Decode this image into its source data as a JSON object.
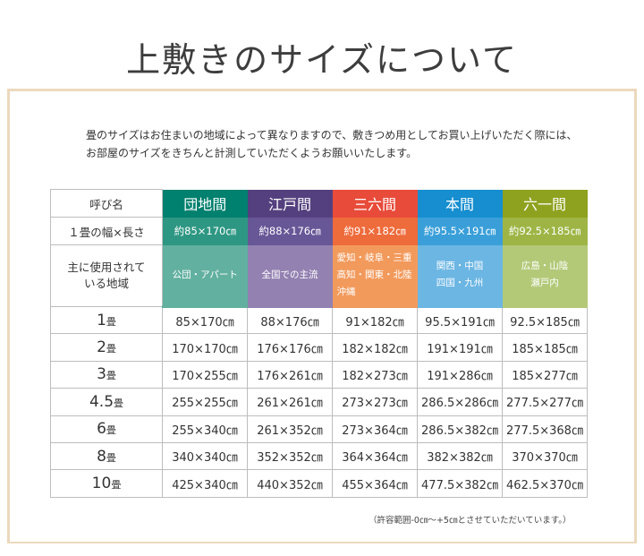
{
  "title": "上敷きのサイズについて",
  "intro": [
    "畳のサイズはお住まいの地域によって異なりますので、敷きつめ用としてお買い上げいただく際には、",
    "お部屋のサイズをきちんと計測していただくようお願いいたします。"
  ],
  "table": {
    "row_labels": {
      "name": "呼び名",
      "size": "１畳の幅×長さ",
      "region": [
        "主に使用されて",
        "いる地域"
      ]
    },
    "columns": [
      {
        "name": "団地間",
        "size": "約85×170㎝",
        "region": [
          "公団・アパート"
        ],
        "colors": {
          "header": "#00806e",
          "size": "#2e9783",
          "region": "#62b0a0"
        }
      },
      {
        "name": "江戸間",
        "size": "約88×176㎝",
        "region": [
          "全国での主流"
        ],
        "colors": {
          "header": "#54407e",
          "size": "#685797",
          "region": "#9381b1"
        }
      },
      {
        "name": "三六間",
        "size": "約91×182㎝",
        "region": [
          "愛知・岐阜・三重",
          "高知・関東・北陸",
          "沖縄"
        ],
        "colors": {
          "header": "#e84b3a",
          "size": "#ee6b3b",
          "region": "#f29a5c"
        }
      },
      {
        "name": "本間",
        "size": "約95.5×191㎝",
        "region": [
          "関西・中国",
          "四国・九州"
        ],
        "colors": {
          "header": "#168ecf",
          "size": "#3a9fd9",
          "region": "#6cb6e3"
        }
      },
      {
        "name": "六一間",
        "size": "約92.5×185㎝",
        "region": [
          "広島・山陰",
          "瀬戸内"
        ],
        "colors": {
          "header": "#8fa21f",
          "size": "#9eb545",
          "region": "#b3c978"
        }
      }
    ],
    "rows": [
      {
        "num": "1",
        "unit": "畳",
        "values": [
          "85×170㎝",
          "88×176㎝",
          "91×182㎝",
          "95.5×191㎝",
          "92.5×185㎝"
        ]
      },
      {
        "num": "2",
        "unit": "畳",
        "values": [
          "170×170㎝",
          "176×176㎝",
          "182×182㎝",
          "191×191㎝",
          "185×185㎝"
        ]
      },
      {
        "num": "3",
        "unit": "畳",
        "values": [
          "170×255㎝",
          "176×261㎝",
          "182×273㎝",
          "191×286㎝",
          "185×277㎝"
        ]
      },
      {
        "num": "4.5",
        "unit": "畳",
        "values": [
          "255×255㎝",
          "261×261㎝",
          "273×273㎝",
          "286.5×286㎝",
          "277.5×277㎝"
        ]
      },
      {
        "num": "6",
        "unit": "畳",
        "values": [
          "255×340㎝",
          "261×352㎝",
          "273×364㎝",
          "286.5×382㎝",
          "277.5×368㎝"
        ]
      },
      {
        "num": "8",
        "unit": "畳",
        "values": [
          "340×340㎝",
          "352×352㎝",
          "364×364㎝",
          "382×382㎝",
          "370×370㎝"
        ]
      },
      {
        "num": "10",
        "unit": "畳",
        "values": [
          "425×340㎝",
          "440×352㎝",
          "455×364㎝",
          "477.5×382㎝",
          "462.5×370㎝"
        ]
      }
    ]
  },
  "note": "（許容範囲-0㎝～+5㎝とさせていただいています。）",
  "frame_color": "#ecd9bd"
}
